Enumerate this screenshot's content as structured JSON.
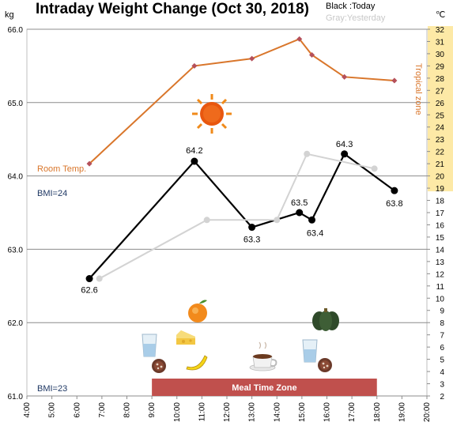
{
  "chart_data": {
    "type": "line",
    "title": "Intraday Weight Change (Oct 30, 2018)",
    "legend": {
      "today": "Black :Today",
      "yesterday": "Gray:Yesterday"
    },
    "y_unit": "kg",
    "y2_unit": "℃",
    "ylim": [
      61.0,
      66.0
    ],
    "y_ticks": [
      "61.0",
      "62.0",
      "63.0",
      "64.0",
      "65.0",
      "66.0"
    ],
    "y2lim": [
      2,
      32
    ],
    "x_hours": [
      4,
      5,
      6,
      7,
      8,
      9,
      10,
      11,
      12,
      13,
      14,
      15,
      16,
      17,
      18,
      19,
      20
    ],
    "x_ticks": [
      "4:00",
      "5:00",
      "6:00",
      "7:00",
      "8:00",
      "9:00",
      "10:00",
      "11:00",
      "12:00",
      "13:00",
      "14:00",
      "15:00",
      "16:00",
      "17:00",
      "18:00",
      "19:00",
      "20:00"
    ],
    "series": [
      {
        "name": "Today",
        "color": "#000000",
        "points": [
          {
            "x": 6.5,
            "y": 62.6,
            "label": "62.6"
          },
          {
            "x": 10.7,
            "y": 64.2,
            "label": "64.2"
          },
          {
            "x": 13.0,
            "y": 63.3,
            "label": "63.3"
          },
          {
            "x": 14.9,
            "y": 63.5,
            "label": "63.5"
          },
          {
            "x": 15.4,
            "y": 63.4,
            "label": "63.4"
          },
          {
            "x": 16.7,
            "y": 64.3,
            "label": "64.3"
          },
          {
            "x": 18.7,
            "y": 63.8,
            "label": "63.8"
          }
        ]
      },
      {
        "name": "Yesterday",
        "color": "#d3d3d3",
        "points": [
          {
            "x": 6.9,
            "y": 62.6
          },
          {
            "x": 11.2,
            "y": 63.4
          },
          {
            "x": 14.0,
            "y": 63.4
          },
          {
            "x": 15.2,
            "y": 64.3
          },
          {
            "x": 17.9,
            "y": 64.1
          }
        ]
      },
      {
        "name": "Room Temp.",
        "color": "#d9762b",
        "axis": "right",
        "points": [
          {
            "x": 6.5,
            "y": 21
          },
          {
            "x": 10.7,
            "y": 29
          },
          {
            "x": 13.0,
            "y": 29.6
          },
          {
            "x": 14.9,
            "y": 31.2
          },
          {
            "x": 15.4,
            "y": 29.9
          },
          {
            "x": 16.7,
            "y": 28.1
          },
          {
            "x": 18.7,
            "y": 27.8
          }
        ]
      }
    ],
    "annotations": {
      "room_temp": "Room Temp.",
      "tropical_zone": "Tropical zone",
      "tropical_range": [
        19,
        32
      ],
      "bmi24": "BMI=24",
      "bmi23": "BMI=23",
      "meal_zone": "Meal Time Zone",
      "meal_range": [
        9,
        18
      ]
    },
    "grid": true
  },
  "icons": {
    "sun": "sun-icon",
    "orange": "orange-icon",
    "cheese": "cheese-icon",
    "banana": "banana-icon",
    "glass_left": "water-glass-icon",
    "glass_right": "water-glass-icon",
    "cookie_left": "cookie-icon",
    "cookie_right": "cookie-icon",
    "coffee": "coffee-cup-icon",
    "pumpkin": "pumpkin-icon"
  },
  "colors": {
    "temp_axis_bg": "#fde9a6",
    "temp_text": "#d9762b",
    "bmi_text": "#1f3864",
    "meal_bar": "#c0504d"
  }
}
